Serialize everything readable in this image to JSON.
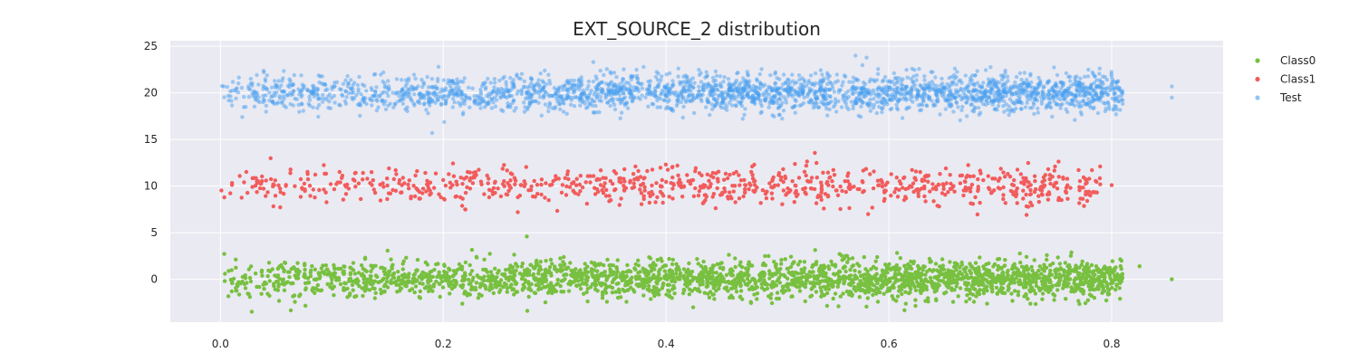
{
  "chart_data": {
    "type": "scatter",
    "title": "EXT_SOURCE_2 distribution",
    "xlabel": "",
    "ylabel": "",
    "xlim": [
      -0.045,
      0.9
    ],
    "ylim": [
      -4.6,
      25.6
    ],
    "x_ticks": [
      0.0,
      0.2,
      0.4,
      0.6,
      0.8
    ],
    "x_tick_labels": [
      "0.0",
      "0.2",
      "0.4",
      "0.6",
      "0.8"
    ],
    "y_ticks": [
      0,
      5,
      10,
      15,
      20,
      25
    ],
    "y_tick_labels": [
      "0",
      "5",
      "10",
      "15",
      "20",
      "25"
    ],
    "grid": true,
    "legend_position": "right",
    "series": [
      {
        "name": "Class0",
        "color": "#78c040",
        "opacity": 1.0,
        "y_center": 0,
        "y_spread": 1.0,
        "x_range": [
          0.0,
          0.81
        ],
        "outliers": [
          {
            "x": 0.825,
            "y": 1.4
          },
          {
            "x": 0.854,
            "y": 0.0
          },
          {
            "x": 0.275,
            "y": 4.6
          }
        ]
      },
      {
        "name": "Class1",
        "color": "#f25c5c",
        "opacity": 1.0,
        "y_center": 10,
        "y_spread": 1.0,
        "x_range": [
          0.0,
          0.79
        ],
        "outliers": [
          {
            "x": 0.8,
            "y": 10.1
          },
          {
            "x": 0.045,
            "y": 13.0
          }
        ]
      },
      {
        "name": "Test",
        "color": "#4a9ff0",
        "opacity": 0.5,
        "y_center": 20,
        "y_spread": 1.0,
        "x_range": [
          0.0,
          0.81
        ],
        "outliers": [
          {
            "x": 0.854,
            "y": 20.7
          },
          {
            "x": 0.854,
            "y": 19.5
          },
          {
            "x": 0.57,
            "y": 24.0
          },
          {
            "x": 0.19,
            "y": 15.7
          }
        ]
      }
    ]
  },
  "legend": [
    {
      "label": "Class0",
      "color": "#78c040"
    },
    {
      "label": "Class1",
      "color": "#f25c5c"
    },
    {
      "label": "Test",
      "color": "#4a9ff0"
    }
  ],
  "colors": {
    "plot_background": "#eaeaf2",
    "grid": "#ffffff"
  }
}
